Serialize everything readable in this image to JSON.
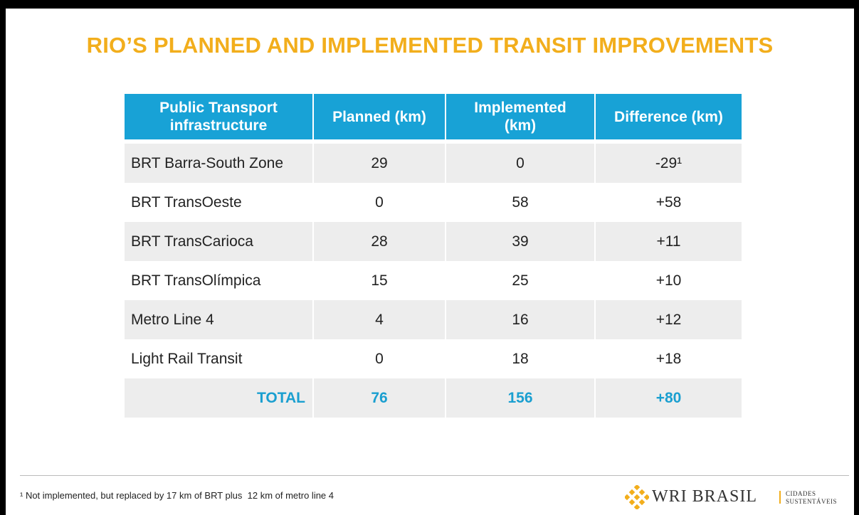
{
  "header": {
    "title": "RIO’S PLANNED AND IMPLEMENTED TRANSIT IMPROVEMENTS"
  },
  "table": {
    "columns": [
      "Public Transport\ninfrastructure",
      "Planned (km)",
      "Implemented\n(km)",
      "Difference (km)"
    ],
    "rows": [
      [
        "BRT Barra-South Zone",
        "29",
        "0",
        "-29¹"
      ],
      [
        "BRT TransOeste",
        "0",
        "58",
        "+58"
      ],
      [
        "BRT TransCarioca",
        "28",
        "39",
        "+11"
      ],
      [
        "BRT TransOlímpica",
        "15",
        "25",
        "+10"
      ],
      [
        "Metro Line 4",
        "4",
        "16",
        "+12"
      ],
      [
        "Light Rail Transit",
        "0",
        "18",
        "+18"
      ]
    ],
    "total": [
      "TOTAL",
      "76",
      "156",
      "+80"
    ]
  },
  "footer": {
    "note": "¹ Not implemented, but replaced by 17 km of BRT plus  12 km of metro line 4",
    "logo": {
      "brand": "WRI BRASIL",
      "line1": "CIDADES",
      "line2": "SUSTENTÁVEIS"
    }
  }
}
